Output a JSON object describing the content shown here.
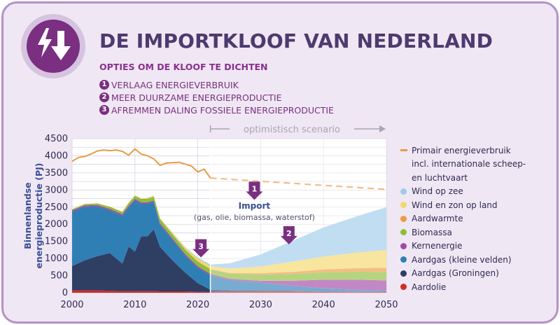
{
  "header": {
    "title": "DE IMPORTKLOOF VAN NEDERLAND",
    "subtitle": "OPTIES OM DE KLOOF TE DICHTEN",
    "options": [
      {
        "num": "1",
        "text": "VERLAAG ENERGIEVERBRUIK"
      },
      {
        "num": "2",
        "text": "MEER DUURZAME ENERGIEPRODUCTIE"
      },
      {
        "num": "3",
        "text": "AFREMMEN DALING FOSSIELE ENERGIEPRODUCTIE"
      }
    ],
    "logo_icon": "import-arrow-icon"
  },
  "colors": {
    "card_bg": "#efe7f3",
    "card_border": "#b591c6",
    "title": "#4b3b6f",
    "accent_purple": "#7a2f80",
    "consumption_line": "#e79b45"
  },
  "chart_data": {
    "type": "area",
    "ylabel": "Binnenlandse energieproductie (PJ)",
    "xlabel": "",
    "xlim": [
      2000,
      2050
    ],
    "ylim": [
      0,
      4500
    ],
    "x_ticks": [
      2000,
      2010,
      2020,
      2030,
      2040,
      2050
    ],
    "y_ticks": [
      0,
      250,
      500,
      750,
      1000,
      1250,
      1500,
      1750,
      2000,
      2250,
      2500,
      2750,
      3000,
      3250,
      3500,
      3750,
      4000,
      4250,
      4500
    ],
    "grid": true,
    "legend_position": "right",
    "scenario_label": "optimistisch scenario",
    "scenario_start": 2022,
    "annotations": [
      {
        "marker": "1",
        "x": 2029,
        "y": 3000
      },
      {
        "marker": "2",
        "x": 2034.5,
        "y": 1700
      },
      {
        "marker": "3",
        "x": 2020.5,
        "y": 1320
      }
    ],
    "gap_label": {
      "title": "Import",
      "text": "(gas, olie, biomassa, waterstof)",
      "x": 2029,
      "y": 2450
    },
    "consumption": {
      "name": "Primair energieverbruik incl. internationale scheep- en luchtvaart",
      "color": "#e79b45",
      "historical": {
        "x": [
          2000,
          2001,
          2002,
          2003,
          2004,
          2005,
          2006,
          2007,
          2008,
          2009,
          2010,
          2011,
          2012,
          2013,
          2014,
          2015,
          2016,
          2017,
          2018,
          2019,
          2020,
          2021,
          2022
        ],
        "y": [
          3840,
          3950,
          3980,
          4050,
          4140,
          4170,
          4150,
          4170,
          4130,
          4020,
          4200,
          4050,
          4000,
          3910,
          3720,
          3790,
          3800,
          3810,
          3760,
          3700,
          3530,
          3610,
          3350
        ]
      },
      "scenario": {
        "x": [
          2022,
          2050
        ],
        "y": [
          3350,
          3020
        ]
      }
    },
    "x": [
      2000,
      2002,
      2004,
      2006,
      2008,
      2009,
      2010,
      2011,
      2012,
      2013,
      2014,
      2016,
      2018,
      2020,
      2022,
      2025,
      2030,
      2035,
      2040,
      2045,
      2050
    ],
    "series": [
      {
        "name": "Aardolie",
        "color": "#d42929",
        "values": [
          70,
          70,
          70,
          60,
          50,
          50,
          50,
          50,
          50,
          50,
          40,
          40,
          40,
          30,
          20,
          30,
          40,
          40,
          30,
          25,
          20
        ]
      },
      {
        "name": "Aardgas (Groningen)",
        "color": "#2f3e63",
        "values": [
          710,
          880,
          1000,
          1100,
          800,
          1300,
          1150,
          1600,
          1600,
          1800,
          1300,
          900,
          550,
          250,
          70,
          40,
          20,
          10,
          0,
          0,
          0
        ]
      },
      {
        "name": "Aardgas (kleine velden)",
        "color": "#2f7fb5",
        "values": [
          1590,
          1560,
          1450,
          1250,
          1400,
          1150,
          1500,
          950,
          950,
          800,
          650,
          600,
          500,
          450,
          420,
          300,
          230,
          150,
          100,
          60,
          40
        ]
      },
      {
        "name": "Kernenergie",
        "color": "#a249a8",
        "values": [
          40,
          40,
          40,
          40,
          40,
          40,
          40,
          40,
          40,
          40,
          40,
          40,
          40,
          40,
          40,
          40,
          60,
          150,
          250,
          300,
          300
        ]
      },
      {
        "name": "Biomassa",
        "color": "#8fbd3c",
        "values": [
          30,
          40,
          50,
          60,
          70,
          80,
          90,
          100,
          110,
          120,
          120,
          120,
          130,
          140,
          130,
          150,
          180,
          200,
          220,
          230,
          250
        ]
      },
      {
        "name": "Aardwarmte",
        "color": "#ee9a3f",
        "values": [
          0,
          0,
          0,
          0,
          0,
          0,
          0,
          0,
          0,
          0,
          0,
          5,
          8,
          10,
          12,
          20,
          40,
          60,
          80,
          100,
          120
        ]
      },
      {
        "name": "Wind en zon op land",
        "color": "#f5d86a",
        "values": [
          5,
          5,
          5,
          10,
          10,
          10,
          15,
          15,
          20,
          20,
          25,
          35,
          50,
          80,
          90,
          130,
          200,
          300,
          380,
          450,
          520
        ]
      },
      {
        "name": "Wind op zee",
        "color": "#9fcbea",
        "values": [
          0,
          0,
          0,
          0,
          2,
          3,
          4,
          4,
          5,
          5,
          6,
          10,
          15,
          25,
          40,
          150,
          350,
          600,
          850,
          1050,
          1250
        ]
      }
    ],
    "legend": [
      {
        "label": "Primair energieverbruik",
        "color": "#e79b45",
        "kind": "line"
      },
      {
        "label": "incl. internationale scheep-",
        "kind": "line-cont"
      },
      {
        "label": "en luchtvaart",
        "kind": "line-cont"
      },
      {
        "label": "Wind op zee",
        "color": "#9fcbea",
        "kind": "dot"
      },
      {
        "label": "Wind en zon op land",
        "color": "#f5d86a",
        "kind": "dot"
      },
      {
        "label": "Aardwarmte",
        "color": "#ee9a3f",
        "kind": "dot"
      },
      {
        "label": "Biomassa",
        "color": "#8fbd3c",
        "kind": "dot"
      },
      {
        "label": "Kernenergie",
        "color": "#a249a8",
        "kind": "dot"
      },
      {
        "label": "Aardgas (kleine velden)",
        "color": "#2f7fb5",
        "kind": "dot"
      },
      {
        "label": "Aardgas (Groningen)",
        "color": "#2f3e63",
        "kind": "dot"
      },
      {
        "label": "Aardolie",
        "color": "#d42929",
        "kind": "dot"
      }
    ]
  }
}
